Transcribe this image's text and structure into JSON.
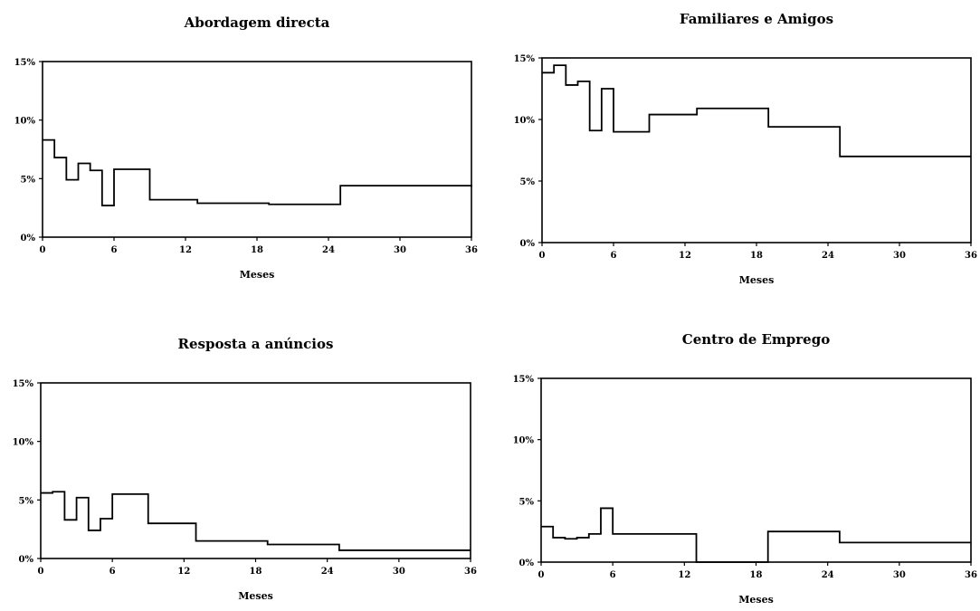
{
  "chart_data": [
    {
      "type": "line",
      "step": "post",
      "title": "Abordagem directa",
      "xlabel": "Meses",
      "ylabel": "",
      "xlim": [
        0,
        36
      ],
      "ylim": [
        0,
        15
      ],
      "xticks": [
        "0",
        "6",
        "12",
        "18",
        "24",
        "30",
        "36"
      ],
      "yticks": [
        "0%",
        "5%",
        "10%",
        "15%"
      ],
      "grid": false,
      "series": [
        {
          "x": [
            0,
            1,
            2,
            3,
            4,
            5,
            6,
            9,
            13,
            19,
            25,
            36
          ],
          "y": [
            8.3,
            6.8,
            4.9,
            6.3,
            5.7,
            2.7,
            5.8,
            3.2,
            2.9,
            2.8,
            4.4,
            4.3
          ]
        }
      ]
    },
    {
      "type": "line",
      "step": "post",
      "title": "Familiares e Amigos",
      "xlabel": "Meses",
      "ylabel": "",
      "xlim": [
        0,
        36
      ],
      "ylim": [
        0,
        15
      ],
      "xticks": [
        "0",
        "6",
        "12",
        "18",
        "24",
        "30",
        "36"
      ],
      "yticks": [
        "0%",
        "5%",
        "10%",
        "15%"
      ],
      "grid": false,
      "series": [
        {
          "x": [
            0,
            1,
            2,
            3,
            4,
            5,
            6,
            9,
            13,
            19,
            25,
            36
          ],
          "y": [
            13.8,
            14.4,
            12.8,
            13.1,
            9.1,
            12.5,
            9.0,
            10.4,
            10.9,
            9.4,
            7.0,
            7.0
          ]
        }
      ]
    },
    {
      "type": "line",
      "step": "post",
      "title": "Resposta a anúncios",
      "xlabel": "Meses",
      "ylabel": "",
      "xlim": [
        0,
        36
      ],
      "ylim": [
        0,
        15
      ],
      "xticks": [
        "0",
        "6",
        "12",
        "18",
        "24",
        "30",
        "36"
      ],
      "yticks": [
        "0%",
        "5%",
        "10%",
        "15%"
      ],
      "grid": false,
      "series": [
        {
          "x": [
            0,
            1,
            2,
            3,
            4,
            5,
            6,
            9,
            13,
            19,
            25,
            36
          ],
          "y": [
            5.6,
            5.7,
            3.3,
            5.2,
            2.4,
            3.4,
            5.5,
            3.0,
            1.5,
            1.2,
            0.7,
            0.7
          ]
        }
      ]
    },
    {
      "type": "line",
      "step": "post",
      "title": "Centro de Emprego",
      "xlabel": "Meses",
      "ylabel": "",
      "xlim": [
        0,
        36
      ],
      "ylim": [
        0,
        15
      ],
      "xticks": [
        "0",
        "6",
        "12",
        "18",
        "24",
        "30",
        "36"
      ],
      "yticks": [
        "0%",
        "5%",
        "10%",
        "15%"
      ],
      "grid": false,
      "series": [
        {
          "x": [
            0,
            1,
            2,
            3,
            4,
            5,
            6,
            9,
            13,
            19,
            25,
            36
          ],
          "y": [
            2.9,
            2.0,
            1.9,
            2.0,
            2.3,
            4.4,
            2.3,
            2.3,
            0.0,
            2.5,
            1.6,
            1.6
          ]
        }
      ]
    }
  ]
}
